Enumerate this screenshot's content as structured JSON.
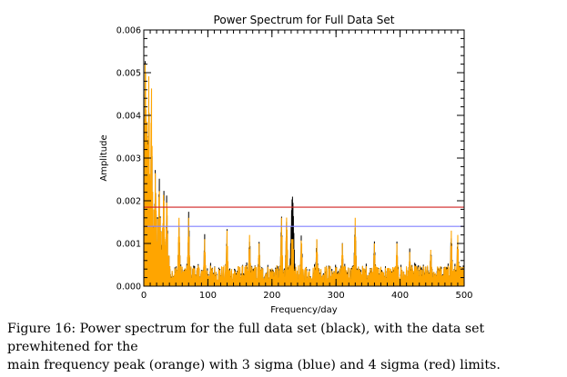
{
  "chart_data": {
    "type": "line",
    "title": "Power Spectrum for Full Data Set",
    "xlabel": "Frequency/day",
    "ylabel": "Amplitude",
    "xlim": [
      0,
      500
    ],
    "ylim": [
      0,
      0.006
    ],
    "x_ticks": [
      "0",
      "100",
      "200",
      "300",
      "400",
      "500"
    ],
    "y_ticks": [
      "0.000",
      "0.001",
      "0.002",
      "0.003",
      "0.004",
      "0.005",
      "0.006"
    ],
    "series_colors": {
      "full": "#000000",
      "prewhitened": "#ffa500",
      "sigma3": "#8080ff",
      "sigma4": "#d02020"
    },
    "thresholds": [
      {
        "key": "sigma3",
        "value": 0.0014
      },
      {
        "key": "sigma4",
        "value": 0.00185
      }
    ],
    "peaks": [
      {
        "x": 3,
        "y": 0.0053
      },
      {
        "x": 8,
        "y": 0.0052
      },
      {
        "x": 12,
        "y": 0.0049
      },
      {
        "x": 18,
        "y": 0.0028
      },
      {
        "x": 24,
        "y": 0.0025
      },
      {
        "x": 31,
        "y": 0.0024
      },
      {
        "x": 36,
        "y": 0.0022
      },
      {
        "x": 55,
        "y": 0.0016
      },
      {
        "x": 70,
        "y": 0.0016
      },
      {
        "x": 95,
        "y": 0.0011
      },
      {
        "x": 130,
        "y": 0.0013
      },
      {
        "x": 165,
        "y": 0.0012
      },
      {
        "x": 180,
        "y": 0.001
      },
      {
        "x": 215,
        "y": 0.0016
      },
      {
        "x": 223,
        "y": 0.0017
      },
      {
        "x": 232,
        "y": 0.0022
      },
      {
        "x": 246,
        "y": 0.0012
      },
      {
        "x": 270,
        "y": 0.0011
      },
      {
        "x": 310,
        "y": 0.001
      },
      {
        "x": 330,
        "y": 0.0016
      },
      {
        "x": 360,
        "y": 0.001
      },
      {
        "x": 395,
        "y": 0.001
      },
      {
        "x": 415,
        "y": 0.0008
      },
      {
        "x": 448,
        "y": 0.0009
      },
      {
        "x": 480,
        "y": 0.0013
      },
      {
        "x": 490,
        "y": 0.0012
      }
    ]
  },
  "caption": {
    "line1": "Figure 16: Power spectrum for the full data set (black), with the data set prewhitened for the",
    "line2": "main frequency peak (orange) with 3 sigma (blue) and 4 sigma (red) limits."
  }
}
